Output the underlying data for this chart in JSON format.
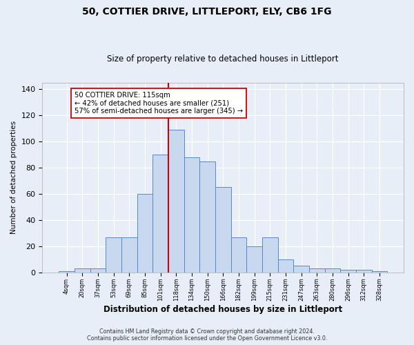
{
  "title": "50, COTTIER DRIVE, LITTLEPORT, ELY, CB6 1FG",
  "subtitle": "Size of property relative to detached houses in Littleport",
  "xlabel": "Distribution of detached houses by size in Littleport",
  "ylabel": "Number of detached properties",
  "bar_labels": [
    "4sqm",
    "20sqm",
    "37sqm",
    "53sqm",
    "69sqm",
    "85sqm",
    "101sqm",
    "118sqm",
    "134sqm",
    "150sqm",
    "166sqm",
    "182sqm",
    "199sqm",
    "215sqm",
    "231sqm",
    "247sqm",
    "263sqm",
    "280sqm",
    "296sqm",
    "312sqm",
    "328sqm"
  ],
  "bar_values": [
    1,
    3,
    3,
    27,
    27,
    60,
    90,
    109,
    88,
    85,
    65,
    27,
    20,
    27,
    10,
    5,
    3,
    3,
    2,
    2,
    1
  ],
  "bar_color": "#c8d8ee",
  "bar_edge_color": "#5588cc",
  "reference_line_x": 7,
  "reference_label": "50 COTTIER DRIVE: 115sqm",
  "annotation_line1": "42% of detached houses are smaller (251)",
  "annotation_line2": "57% of semi-detached houses are larger (345)",
  "footer1": "Contains HM Land Registry data © Crown copyright and database right 2024.",
  "footer2": "Contains public sector information licensed under the Open Government Licence v3.0.",
  "ylim": [
    0,
    145
  ],
  "yticks": [
    0,
    20,
    40,
    60,
    80,
    100,
    120,
    140
  ],
  "background_color": "#e8eef8",
  "plot_bg_color": "#e8eef8"
}
